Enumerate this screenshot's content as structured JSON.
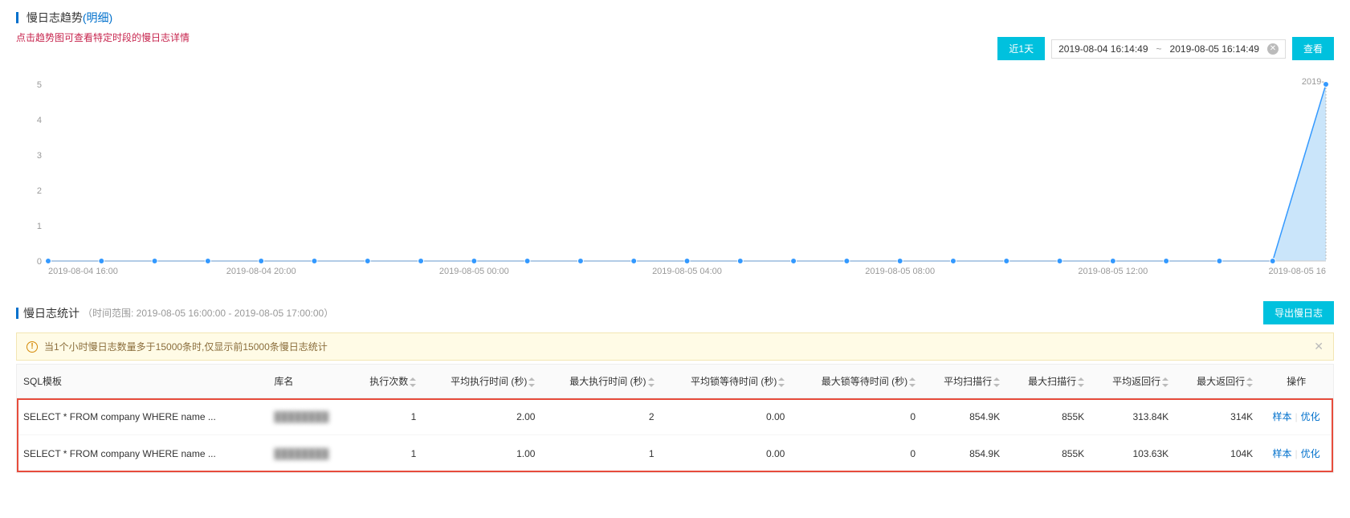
{
  "header": {
    "title": "慢日志趋势",
    "detail_link": "(明细)",
    "hint": "点击趋势图可查看特定时段的慢日志详情"
  },
  "toolbar": {
    "quick_range_label": "近1天",
    "date_from": "2019-08-04 16:14:49",
    "date_to": "2019-08-05 16:14:49",
    "separator": "~",
    "search_label": "查看"
  },
  "chart": {
    "type": "area",
    "colors": {
      "line": "#3399ff",
      "fill": "#9ecff5",
      "point": "#3399ff",
      "axis": "#999999",
      "grid": "#eeeeee"
    },
    "ylim": [
      0,
      5
    ],
    "ytick_step": 1,
    "y_ticks": [
      0,
      1,
      2,
      3,
      4,
      5
    ],
    "x_labels_major": [
      "2019-08-04 16:00",
      "2019-08-04 20:00",
      "2019-08-05 00:00",
      "2019-08-05 04:00",
      "2019-08-05 08:00",
      "2019-08-05 12:00",
      "2019-08-05 16"
    ],
    "last_point_label": "2019-",
    "point_count": 25,
    "values": [
      0,
      0,
      0,
      0,
      0,
      0,
      0,
      0,
      0,
      0,
      0,
      0,
      0,
      0,
      0,
      0,
      0,
      0,
      0,
      0,
      0,
      0,
      0,
      0,
      5
    ]
  },
  "stats": {
    "title": "慢日志统计",
    "subtitle": "（时间范围: 2019-08-05 16:00:00 - 2019-08-05 17:00:00）",
    "export_label": "导出慢日志"
  },
  "alert": {
    "text": "当1个小时慢日志数量多于15000条时,仅显示前15000条慢日志统计"
  },
  "table": {
    "columns": [
      "SQL模板",
      "库名",
      "执行次数",
      "平均执行时间 (秒)",
      "最大执行时间 (秒)",
      "平均锁等待时间 (秒)",
      "最大锁等待时间 (秒)",
      "平均扫描行",
      "最大扫描行",
      "平均返回行",
      "最大返回行",
      "操作"
    ],
    "rows": [
      {
        "sql": "SELECT * FROM company WHERE name ...",
        "db": "████████",
        "exec_count": "1",
        "avg_exec": "2.00",
        "max_exec": "2",
        "avg_lock": "0.00",
        "max_lock": "0",
        "avg_scan": "854.9K",
        "max_scan": "855K",
        "avg_ret": "313.84K",
        "max_ret": "314K"
      },
      {
        "sql": "SELECT * FROM company WHERE name ...",
        "db": "████████",
        "exec_count": "1",
        "avg_exec": "1.00",
        "max_exec": "1",
        "avg_lock": "0.00",
        "max_lock": "0",
        "avg_scan": "854.9K",
        "max_scan": "855K",
        "avg_ret": "103.63K",
        "max_ret": "104K"
      }
    ],
    "actions": {
      "sample": "样本",
      "optimize": "优化"
    }
  }
}
